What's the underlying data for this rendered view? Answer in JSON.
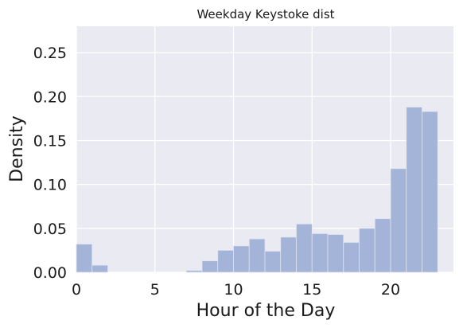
{
  "chart_data": {
    "type": "bar",
    "title": "Weekday Keystoke dist",
    "xlabel": "Hour of the Day",
    "ylabel": "Density",
    "xlim": [
      0,
      24
    ],
    "ylim": [
      0,
      0.28
    ],
    "xticks": [
      0,
      5,
      10,
      15,
      20
    ],
    "xtick_labels": [
      "0",
      "5",
      "10",
      "15",
      "20"
    ],
    "yticks": [
      0,
      0.05,
      0.1,
      0.15,
      0.2,
      0.25
    ],
    "ytick_labels": [
      "0.00",
      "0.05",
      "0.10",
      "0.15",
      "0.20",
      "0.25"
    ],
    "grid": true,
    "bin_width": 1,
    "bins": [
      {
        "x": 0,
        "value": 0.032
      },
      {
        "x": 1,
        "value": 0.008
      },
      {
        "x": 2,
        "value": 0.0
      },
      {
        "x": 3,
        "value": 0.0
      },
      {
        "x": 4,
        "value": 0.0
      },
      {
        "x": 5,
        "value": 0.0
      },
      {
        "x": 6,
        "value": 0.0
      },
      {
        "x": 7,
        "value": 0.002
      },
      {
        "x": 8,
        "value": 0.013
      },
      {
        "x": 9,
        "value": 0.025
      },
      {
        "x": 10,
        "value": 0.03
      },
      {
        "x": 11,
        "value": 0.038
      },
      {
        "x": 12,
        "value": 0.024
      },
      {
        "x": 13,
        "value": 0.04
      },
      {
        "x": 14,
        "value": 0.055
      },
      {
        "x": 15,
        "value": 0.044
      },
      {
        "x": 16,
        "value": 0.043
      },
      {
        "x": 17,
        "value": 0.034
      },
      {
        "x": 18,
        "value": 0.05
      },
      {
        "x": 19,
        "value": 0.061
      },
      {
        "x": 20,
        "value": 0.118
      },
      {
        "x": 21,
        "value": 0.188
      },
      {
        "x": 22,
        "value": 0.183
      }
    ],
    "colors": {
      "bar": "#a4b4d8",
      "bar_edge": "#dfe3ee",
      "background": "#eaeaf2",
      "grid": "#ffffff"
    }
  }
}
